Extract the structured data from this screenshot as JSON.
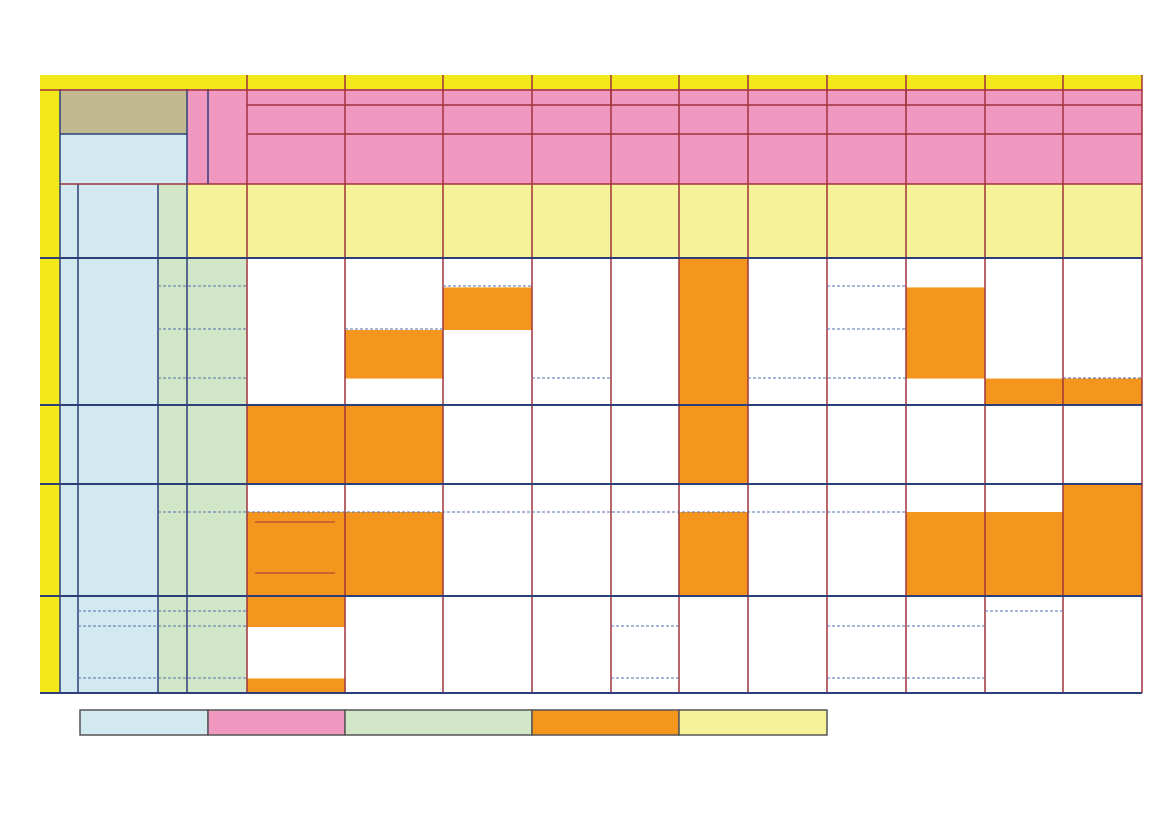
{
  "colors": {
    "frame_yellow": "#f2e81a",
    "header_yellow": "#f5f299",
    "pink": "#f098c0",
    "light_blue": "#d3e9f0",
    "light_green": "#d1e7c8",
    "tan": "#c3b991",
    "orange": "#f4961e",
    "white": "#ffffff",
    "grid_red": "#a0333a",
    "grid_navy": "#2c3f7a",
    "dashed_blue": "#5570b0"
  },
  "legend": {
    "items": [
      {
        "color_key": "light_blue",
        "label": ""
      },
      {
        "color_key": "pink",
        "label": ""
      },
      {
        "color_key": "light_green",
        "label": ""
      },
      {
        "color_key": "orange",
        "label": ""
      },
      {
        "color_key": "header_yellow",
        "label": ""
      }
    ]
  },
  "schedule": {
    "column_count": 11,
    "row_bands": 4,
    "filled_cells": [
      {
        "band": 1,
        "col": 5,
        "span_from": 0,
        "span_to": 1
      },
      {
        "band": 1,
        "col": 2,
        "span_from": 0.2,
        "span_to": 0.49
      },
      {
        "band": 1,
        "col": 8,
        "span_from": 0.2,
        "span_to": 0.82
      },
      {
        "band": 1,
        "col": 1,
        "span_from": 0.49,
        "span_to": 0.82
      },
      {
        "band": 1,
        "col": 9,
        "span_from": 0.82,
        "span_to": 1
      },
      {
        "band": 1,
        "col": 10,
        "span_from": 0.82,
        "span_to": 1
      },
      {
        "band": 2,
        "col": 0,
        "span_from": 0,
        "span_to": 1
      },
      {
        "band": 2,
        "col": 1,
        "span_from": 0,
        "span_to": 1
      },
      {
        "band": 2,
        "col": 5,
        "span_from": 0,
        "span_to": 1
      },
      {
        "band": 3,
        "col": 10,
        "span_from": 0,
        "span_to": 0.25
      },
      {
        "band": 3,
        "col": 0,
        "span_from": 0.25,
        "span_to": 1
      },
      {
        "band": 3,
        "col": 1,
        "span_from": 0.25,
        "span_to": 1
      },
      {
        "band": 3,
        "col": 5,
        "span_from": 0.25,
        "span_to": 1
      },
      {
        "band": 3,
        "col": 8,
        "span_from": 0.25,
        "span_to": 1
      },
      {
        "band": 3,
        "col": 9,
        "span_from": 0.25,
        "span_to": 1
      },
      {
        "band": 3,
        "col": 10,
        "span_from": 0.25,
        "span_to": 1
      },
      {
        "band": 4,
        "col": 0,
        "span_from": 0,
        "span_to": 0.32
      },
      {
        "band": 4,
        "col": 0,
        "span_from": 0.85,
        "span_to": 1
      }
    ]
  }
}
